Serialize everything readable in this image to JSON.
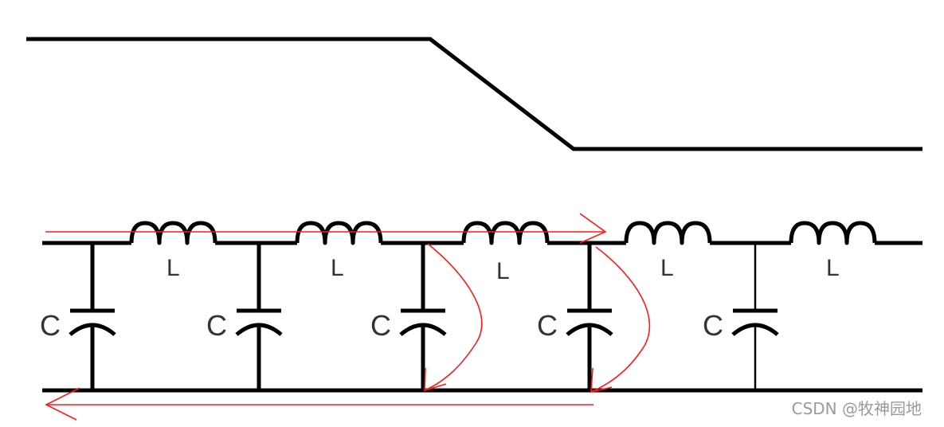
{
  "labels": {
    "inductors": [
      "L",
      "L",
      "L",
      "L",
      "L"
    ],
    "capacitors": [
      "C",
      "C",
      "C",
      "C",
      "C"
    ]
  },
  "watermark": "CSDN @牧神园地",
  "colors": {
    "wire": "#000000",
    "arrow": "#ff1a1a",
    "label": "#333333",
    "watermark": "#9a9a9a"
  }
}
